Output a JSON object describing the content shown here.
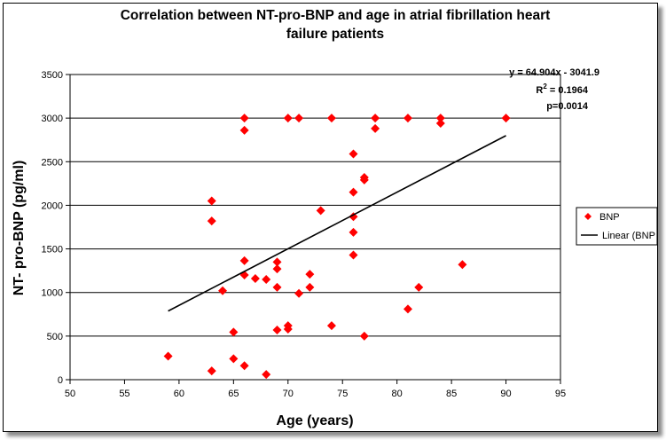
{
  "chart_data": {
    "type": "scatter",
    "title_lines": [
      "Correlation between NT-pro-BNP and age in atrial fibrillation heart",
      "failure patients"
    ],
    "xlabel": "Age (years)",
    "ylabel": "NT- pro-BNP (pg/ml)",
    "xlim": [
      50,
      95
    ],
    "ylim": [
      0,
      3500
    ],
    "xticks": [
      50,
      55,
      60,
      65,
      70,
      75,
      80,
      85,
      90,
      95
    ],
    "yticks": [
      0,
      500,
      1000,
      1500,
      2000,
      2500,
      3000,
      3500
    ],
    "horizontal_grid": true,
    "legend_position": "right",
    "marker_color": "#ff0000",
    "trend_color": "#000000",
    "series": [
      {
        "name": "BNP",
        "points": [
          [
            59,
            270
          ],
          [
            63,
            100
          ],
          [
            63,
            1820
          ],
          [
            63,
            2050
          ],
          [
            64,
            1020
          ],
          [
            65,
            240
          ],
          [
            65,
            545
          ],
          [
            66,
            160
          ],
          [
            66,
            1200
          ],
          [
            66,
            1365
          ],
          [
            66,
            2860
          ],
          [
            66,
            3000
          ],
          [
            67,
            1160
          ],
          [
            68,
            60
          ],
          [
            68,
            1150
          ],
          [
            69,
            1060
          ],
          [
            69,
            1270
          ],
          [
            69,
            1350
          ],
          [
            69,
            570
          ],
          [
            70,
            580
          ],
          [
            70,
            620
          ],
          [
            70,
            3000
          ],
          [
            71,
            990
          ],
          [
            71,
            3000
          ],
          [
            72,
            1060
          ],
          [
            72,
            1210
          ],
          [
            73,
            1940
          ],
          [
            74,
            620
          ],
          [
            74,
            3000
          ],
          [
            76,
            1430
          ],
          [
            76,
            1690
          ],
          [
            76,
            1870
          ],
          [
            76,
            2150
          ],
          [
            76,
            2590
          ],
          [
            77,
            500
          ],
          [
            77,
            2290
          ],
          [
            77,
            2320
          ],
          [
            78,
            2880
          ],
          [
            78,
            3000
          ],
          [
            81,
            810
          ],
          [
            81,
            3000
          ],
          [
            82,
            1060
          ],
          [
            84,
            2940
          ],
          [
            84,
            3000
          ],
          [
            86,
            1320
          ],
          [
            90,
            3000
          ]
        ]
      },
      {
        "name": "Linear (BNP",
        "trend": {
          "slope": 64.904,
          "intercept": -3041.9,
          "x_range": [
            59,
            90
          ]
        }
      }
    ],
    "annotations": {
      "equation": "y = 64.904x - 3041.9",
      "r2_prefix": "R",
      "r2_exp": "2",
      "r2_value": " = 0.1964",
      "p_value": "p=0.0014"
    }
  }
}
